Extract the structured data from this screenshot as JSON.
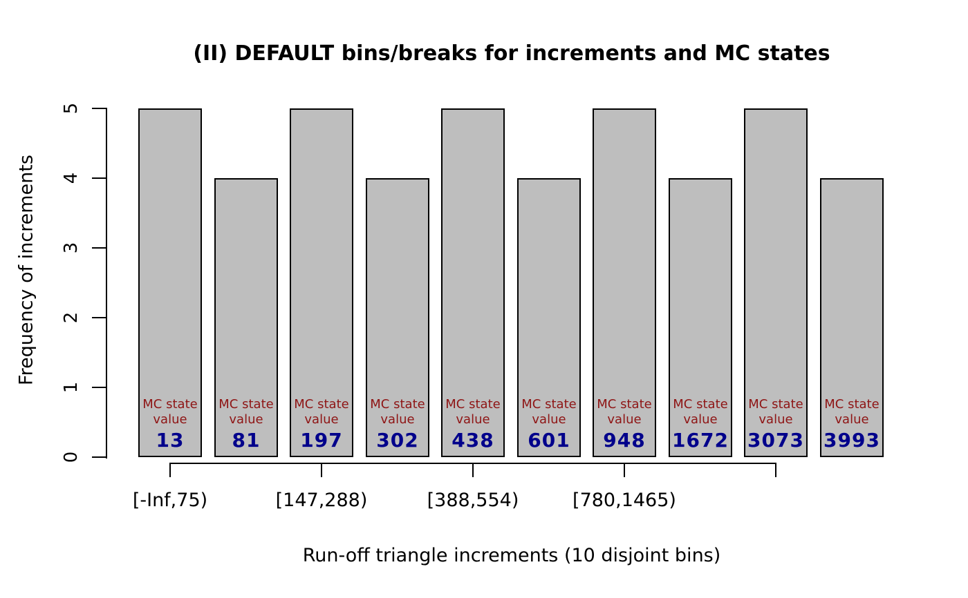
{
  "chart_data": {
    "type": "bar",
    "title": "(II) DEFAULT bins/breaks for increments and MC states",
    "xlabel": "Run-off triangle increments (10 disjoint bins)",
    "ylabel": "Frequency of increments",
    "ylim": [
      0,
      5
    ],
    "y_ticks": [
      "0",
      "1",
      "2",
      "3",
      "4",
      "5"
    ],
    "grid": false,
    "legend": "none",
    "bar_inner_label": {
      "line1": "MC state",
      "line2": "value"
    },
    "categories_note": "10 disjoint bins; x ticks mark bins 1,3,5,7,9; labels shown for first four ticks only",
    "bars": [
      {
        "frequency": 5,
        "mc_state_value": "13"
      },
      {
        "frequency": 4,
        "mc_state_value": "81"
      },
      {
        "frequency": 5,
        "mc_state_value": "197"
      },
      {
        "frequency": 4,
        "mc_state_value": "302"
      },
      {
        "frequency": 5,
        "mc_state_value": "438"
      },
      {
        "frequency": 4,
        "mc_state_value": "601"
      },
      {
        "frequency": 5,
        "mc_state_value": "948"
      },
      {
        "frequency": 4,
        "mc_state_value": "1672"
      },
      {
        "frequency": 5,
        "mc_state_value": "3073"
      },
      {
        "frequency": 4,
        "mc_state_value": "3993"
      }
    ],
    "x_ticks_at_bar_numbers": [
      1,
      3,
      5,
      7,
      9
    ],
    "x_tick_labels": [
      "[-Inf,75)",
      "[147,288)",
      "[388,554)",
      "[780,1465)"
    ]
  },
  "colors": {
    "background": "#ffffff",
    "bar_fill": "#bebebe",
    "bar_border": "#000000",
    "inner_label": "#8e1414",
    "inner_value": "#00008b",
    "axis": "#000000",
    "text": "#000000"
  }
}
